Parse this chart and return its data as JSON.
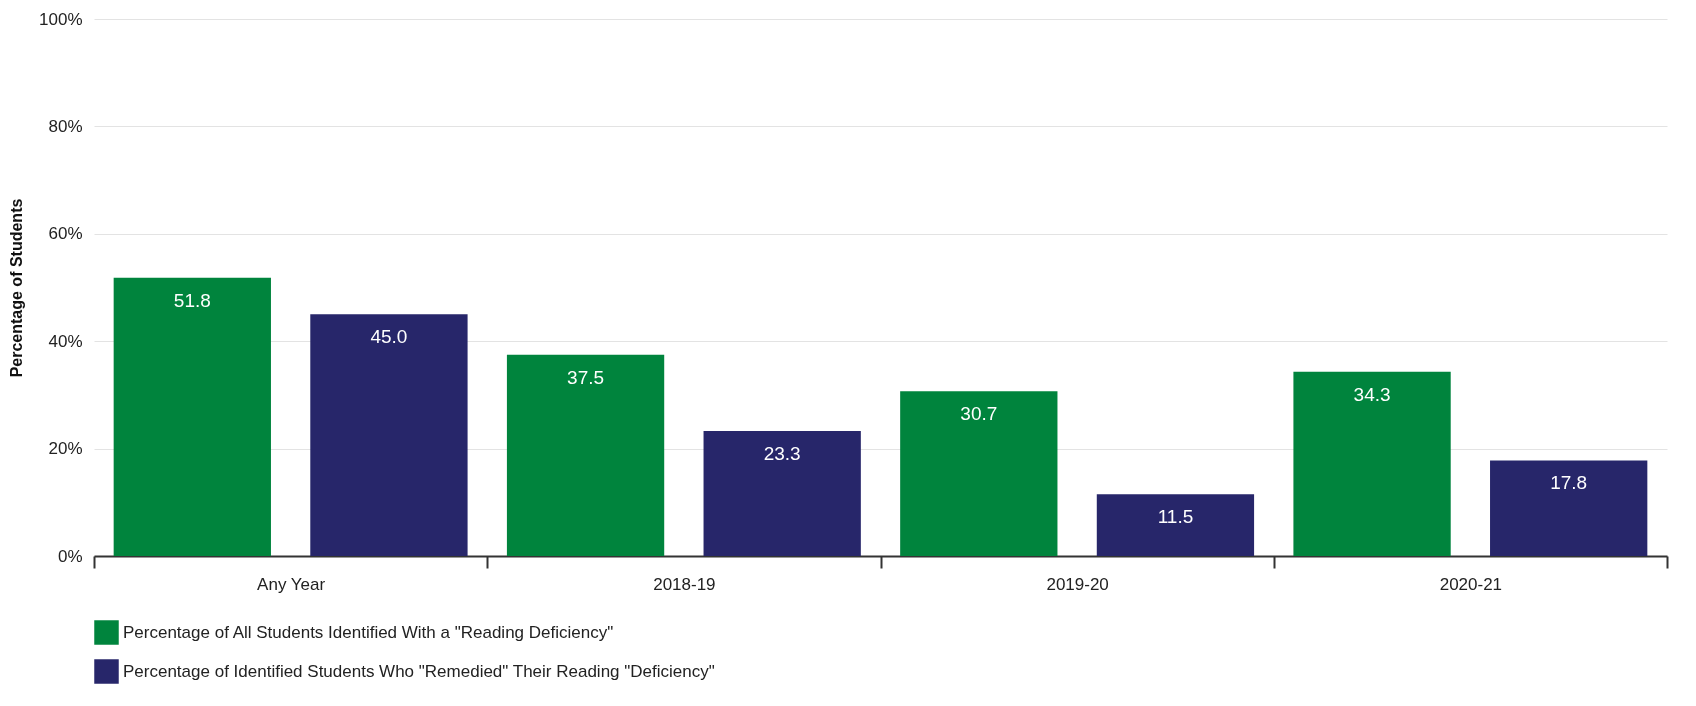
{
  "chart_data": {
    "type": "bar",
    "ylabel": "Percentage of Students",
    "categories": [
      "Any Year",
      "2018-19",
      "2019-20",
      "2020-21"
    ],
    "series": [
      {
        "name": "Percentage of All Students Identified With a \"Reading Deficiency\"",
        "color": "#00843d",
        "values": [
          51.8,
          37.5,
          30.7,
          34.3
        ],
        "value_labels": [
          "51.8",
          "37.5",
          "30.7",
          "34.3"
        ]
      },
      {
        "name": "Percentage of Identified Students Who \"Remedied\" Their Reading \"Deficiency\"",
        "color": "#27266a",
        "values": [
          45.0,
          23.3,
          11.5,
          17.8
        ],
        "value_labels": [
          "45.0",
          "23.3",
          "11.5",
          "17.8"
        ]
      }
    ],
    "ylim": [
      0,
      100
    ],
    "yticks": [
      {
        "value": 0,
        "label": "0%"
      },
      {
        "value": 20,
        "label": "20%"
      },
      {
        "value": 40,
        "label": "40%"
      },
      {
        "value": 60,
        "label": "60%"
      },
      {
        "value": 80,
        "label": "80%"
      },
      {
        "value": 100,
        "label": "100%"
      }
    ],
    "grid": "y",
    "legend": "bottom"
  }
}
